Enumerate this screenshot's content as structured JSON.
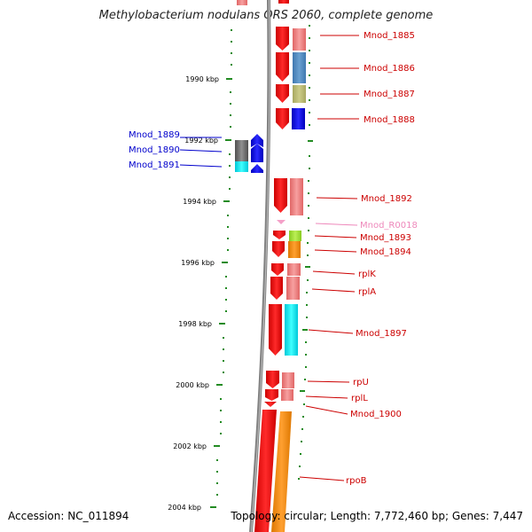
{
  "title": "Methylobacterium nodulans ORS 2060, complete genome",
  "accession": "Accession: NC_011894",
  "topology": "Topology: circular; Length: 7,772,460 bp; Genes: 7,447",
  "colors": {
    "ruler": "#228B22",
    "backbone": "#808080",
    "label_red": "#cc0000",
    "label_blue": "#0000cc",
    "label_pink": "#ee88bb"
  },
  "scale_labels": [
    "1990 kbp",
    "1992 kbp",
    "1994 kbp",
    "1996 kbp",
    "1998 kbp",
    "2000 kbp",
    "2002 kbp",
    "2004 kbp"
  ],
  "gene_labels": [
    "Mnod_1885",
    "Mnod_1886",
    "Mnod_1887",
    "Mnod_1888",
    "Mnod_1889",
    "Mnod_1890",
    "Mnod_1891",
    "Mnod_1892",
    "Mnod_R0018",
    "Mnod_1893",
    "Mnod_1894",
    "rplK",
    "rplA",
    "Mnod_1897",
    "rpU",
    "rplL",
    "Mnod_1900",
    "rpoB"
  ]
}
